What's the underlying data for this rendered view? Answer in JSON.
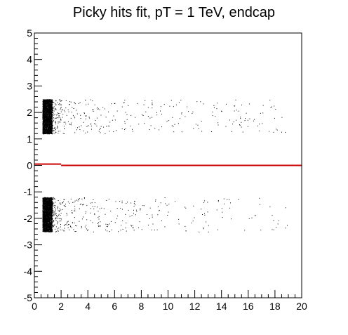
{
  "chart_data": {
    "type": "scatter",
    "title": "Picky hits fit, pT = 1 TeV, endcap",
    "xlabel": "",
    "ylabel": "",
    "xlim": [
      0,
      20
    ],
    "ylim": [
      -5,
      5
    ],
    "x_ticks": [
      0,
      2,
      4,
      6,
      8,
      10,
      12,
      14,
      16,
      18,
      20
    ],
    "y_ticks": [
      -5,
      -4,
      -3,
      -2,
      -1,
      0,
      1,
      2,
      3,
      4,
      5
    ],
    "grid": false,
    "legend": "none",
    "colors": {
      "points": "#000000",
      "fit_line": "#cc0000",
      "frame": "#000000"
    },
    "series": [
      {
        "kind": "points",
        "bands": [
          {
            "dense_x": [
              0.6,
              1.3
            ],
            "y": [
              1.2,
              2.5
            ],
            "sparse_x": [
              1.3,
              19.0
            ]
          },
          {
            "dense_x": [
              0.6,
              1.3
            ],
            "y": [
              -2.5,
              -1.2
            ],
            "sparse_x": [
              1.3,
              19.0
            ]
          }
        ],
        "sparse_points": [
          [
            2.0,
            2.3
          ],
          [
            2.4,
            1.9
          ],
          [
            2.8,
            2.2
          ],
          [
            3.3,
            2.35
          ],
          [
            3.7,
            2.0
          ],
          [
            4.1,
            1.8
          ],
          [
            4.5,
            2.3
          ],
          [
            5.1,
            2.2
          ],
          [
            5.5,
            1.5
          ],
          [
            6.0,
            2.35
          ],
          [
            6.8,
            1.4
          ],
          [
            7.2,
            1.9
          ],
          [
            7.7,
            2.35
          ],
          [
            8.2,
            1.6
          ],
          [
            8.8,
            2.3
          ],
          [
            9.5,
            1.95
          ],
          [
            10.1,
            2.25
          ],
          [
            10.6,
            2.3
          ],
          [
            11.0,
            2.0
          ],
          [
            11.5,
            2.05
          ],
          [
            12.5,
            1.3
          ],
          [
            14.0,
            2.05
          ],
          [
            15.1,
            2.1
          ],
          [
            2.1,
            -1.4
          ],
          [
            2.5,
            -2.1
          ],
          [
            3.0,
            -1.7
          ],
          [
            3.5,
            -2.3
          ],
          [
            3.9,
            -1.5
          ],
          [
            4.4,
            -2.5
          ],
          [
            5.0,
            -1.6
          ],
          [
            5.6,
            -2.2
          ],
          [
            6.2,
            -1.9
          ],
          [
            6.8,
            -2.35
          ],
          [
            7.4,
            -1.8
          ],
          [
            8.1,
            -1.5
          ],
          [
            8.6,
            -2.0
          ],
          [
            9.3,
            -1.7
          ],
          [
            10.0,
            -1.75
          ],
          [
            10.8,
            -2.2
          ],
          [
            11.3,
            -1.6
          ],
          [
            12.3,
            -2.5
          ],
          [
            13.0,
            -2.5
          ],
          [
            14.6,
            -1.6
          ],
          [
            18.2,
            -2.2
          ],
          [
            18.9,
            -2.25
          ]
        ]
      },
      {
        "kind": "line",
        "segments": [
          {
            "x": [
              0,
              2
            ],
            "y": [
              0.05,
              0.05
            ]
          },
          {
            "x": [
              2,
              20
            ],
            "y": [
              0.0,
              0.0
            ]
          }
        ]
      }
    ]
  }
}
